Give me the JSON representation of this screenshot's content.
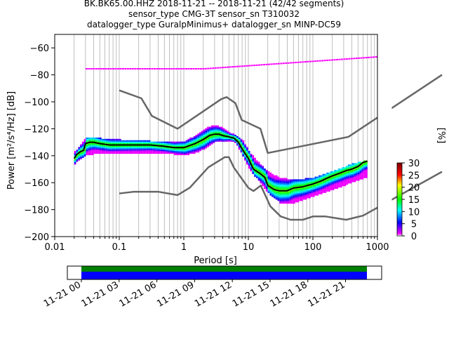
{
  "chart_data": {
    "type": "heatmap",
    "title_lines": [
      "BK.BK65.00.HHZ   2018-11-21 -- 2018-11-21  (42/42 segments)",
      "sensor_type CMG-3T sensor_sn T310032",
      "datalogger_type GuralpMinimus+ datalogger_sn MINP-DC59"
    ],
    "xlabel": "Period [s]",
    "ylabel": "Power [m²/s⁴/Hz] [dB]",
    "x_scale": "log",
    "xlim": [
      0.01,
      1000
    ],
    "ylim": [
      -200,
      -50
    ],
    "x_ticks": [
      {
        "value": 0.01,
        "label": "0.01"
      },
      {
        "value": 0.1,
        "label": "0.1"
      },
      {
        "value": 1,
        "label": "1"
      },
      {
        "value": 10,
        "label": "10"
      },
      {
        "value": 100,
        "label": "100"
      },
      {
        "value": 1000,
        "label": "1000"
      }
    ],
    "y_ticks": [
      {
        "value": -60,
        "label": "−60"
      },
      {
        "value": -80,
        "label": "−80"
      },
      {
        "value": -100,
        "label": "−100"
      },
      {
        "value": -120,
        "label": "−120"
      },
      {
        "value": -140,
        "label": "−140"
      },
      {
        "value": -160,
        "label": "−160"
      },
      {
        "value": -180,
        "label": "−180"
      },
      {
        "value": -200,
        "label": "−200"
      }
    ],
    "grid": "vertical log grid on",
    "colorbar": {
      "label": "[%]",
      "range": [
        0,
        30
      ],
      "ticks": [
        {
          "value": 0,
          "label": "0"
        },
        {
          "value": 5,
          "label": "5"
        },
        {
          "value": 10,
          "label": "10"
        },
        {
          "value": 15,
          "label": "15"
        },
        {
          "value": 20,
          "label": "20"
        },
        {
          "value": 25,
          "label": "25"
        },
        {
          "value": 30,
          "label": "30"
        }
      ]
    },
    "series": [
      {
        "role": "noise_model_high",
        "color": "#666666",
        "x": [
          0.1,
          0.22,
          0.32,
          0.8,
          3.8,
          4.6,
          6.3,
          7.9,
          15.4,
          20,
          354.8,
          10000
        ],
        "y": [
          -91.5,
          -97.4,
          -110.5,
          -120,
          -98,
          -96.5,
          -101,
          -113.5,
          -120,
          -138,
          -126,
          -80
        ]
      },
      {
        "role": "noise_model_low",
        "color": "#666666",
        "x": [
          0.1,
          0.17,
          0.4,
          0.8,
          1.24,
          2.4,
          4.3,
          5,
          6,
          10,
          12,
          15.6,
          21.9,
          31.6,
          45,
          70,
          101,
          154,
          328,
          600,
          10000
        ],
        "y": [
          -168,
          -166.7,
          -166.7,
          -169.2,
          -163.7,
          -148.6,
          -141.1,
          -141.1,
          -149,
          -163.8,
          -166.2,
          -162.1,
          -177.5,
          -185,
          -187.5,
          -187.5,
          -185,
          -185,
          -187.5,
          -184.4,
          -151.9
        ]
      },
      {
        "role": "mode",
        "color": "#000000",
        "x": [
          0.02,
          0.022,
          0.025,
          0.028,
          0.03,
          0.035,
          0.04,
          0.05,
          0.07,
          0.1,
          0.15,
          0.2,
          0.3,
          0.5,
          0.7,
          1,
          1.5,
          2,
          2.5,
          3,
          3.5,
          4,
          5,
          6,
          7,
          8,
          10,
          12,
          15,
          18,
          20,
          25,
          30,
          40,
          50,
          70,
          100,
          130,
          160,
          200,
          260,
          330,
          400,
          500,
          600,
          700
        ],
        "y": [
          -142,
          -139,
          -137,
          -136,
          -131,
          -130,
          -130,
          -131,
          -132,
          -132,
          -132,
          -132,
          -132,
          -133,
          -134,
          -134,
          -131,
          -128,
          -125,
          -124,
          -124,
          -125,
          -126,
          -127,
          -130,
          -135,
          -142,
          -150,
          -153,
          -156,
          -162,
          -165,
          -166,
          -166,
          -164,
          -163,
          -161,
          -159,
          -157,
          -155,
          -153,
          -151,
          -150,
          -148,
          -145,
          -144
        ]
      }
    ],
    "density_bands": [
      {
        "x": [
          0.02,
          0.03,
          0.05,
          0.1,
          0.3,
          0.7,
          1,
          1.5,
          2,
          3,
          4,
          5,
          6,
          8,
          10,
          15,
          20,
          30,
          50,
          100,
          200,
          400,
          700
        ],
        "y_high": [
          -137,
          -126,
          -127,
          -128,
          -129,
          -130,
          -129,
          -125,
          -120,
          -117,
          -119,
          -123,
          -124,
          -128,
          -137,
          -146,
          -152,
          -156,
          -158,
          -156,
          -151,
          -146,
          -143
        ],
        "y_low": [
          -146,
          -140,
          -138,
          -138,
          -138,
          -139,
          -140,
          -138,
          -135,
          -130,
          -129,
          -129,
          -130,
          -140,
          -150,
          -160,
          -168,
          -175,
          -175,
          -170,
          -165,
          -160,
          -156
        ]
      }
    ],
    "outliers": [
      {
        "x_range": [
          0.03,
          1000
        ],
        "y": -75,
        "note": "magenta low-occurrence trace"
      }
    ]
  },
  "timeline": {
    "tick_labels": [
      "11-21 00",
      "11-21 03",
      "11-21 06",
      "11-21 09",
      "11-21 12",
      "11-21 15",
      "11-21 18",
      "11-21 21"
    ],
    "coverage": [
      {
        "segment": "data",
        "start_hour": 0,
        "end_hour": 22.7,
        "color": "#0000ff"
      },
      {
        "segment": "data_gap_check",
        "start_hour": 0,
        "end_hour": 22.7,
        "color": "#008000"
      }
    ]
  }
}
